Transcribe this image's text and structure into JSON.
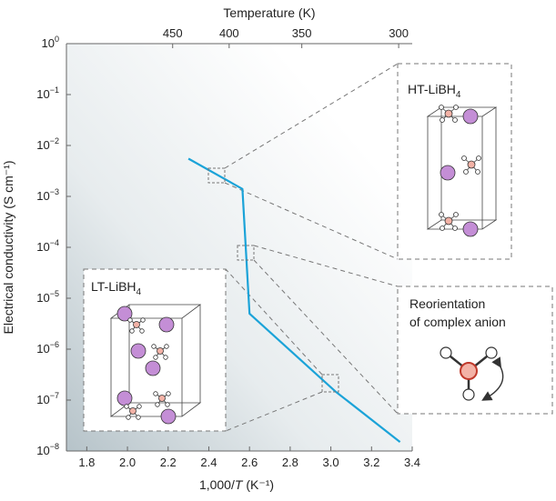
{
  "chart_data": {
    "type": "line",
    "title": "",
    "xlabel_prefix": "1,000/",
    "xlabel_var": "T",
    "xlabel_suffix": " (K⁻¹)",
    "ylabel": "Electrical conductivity (S cm⁻¹)",
    "top_axis_label": "Temperature (K)",
    "xlim": [
      1.7,
      3.4
    ],
    "ylim_log10": [
      -8,
      0
    ],
    "y_scale": "log",
    "x_ticks": [
      "1.8",
      "2.0",
      "2.2",
      "2.4",
      "2.6",
      "2.8",
      "3.0",
      "3.2",
      "3.4"
    ],
    "y_ticks": [
      {
        "base": "10",
        "exp": "0"
      },
      {
        "base": "10",
        "exp": "−1"
      },
      {
        "base": "10",
        "exp": "−2"
      },
      {
        "base": "10",
        "exp": "−3"
      },
      {
        "base": "10",
        "exp": "−4"
      },
      {
        "base": "10",
        "exp": "−5"
      },
      {
        "base": "10",
        "exp": "−6"
      },
      {
        "base": "10",
        "exp": "−7"
      },
      {
        "base": "10",
        "exp": "−8"
      }
    ],
    "top_ticks": [
      {
        "temperature": 450,
        "label": "450"
      },
      {
        "temperature": 400,
        "label": "400"
      },
      {
        "temperature": 350,
        "label": "350"
      },
      {
        "temperature": 300,
        "label": "300"
      }
    ],
    "series": [
      {
        "color": "#1ba3d8",
        "x": [
          2.3,
          2.565,
          2.6,
          3.02,
          3.34
        ],
        "y": [
          0.0055,
          0.0014,
          5e-06,
          1.5e-07,
          1.5e-08
        ]
      }
    ],
    "insets": {
      "ht": {
        "title_main": "HT-LiBH",
        "title_sub": "4"
      },
      "lt": {
        "title_main": "LT-LiBH",
        "title_sub": "4"
      },
      "reorientation": {
        "line1": "Reorientation",
        "line2": "of complex anion"
      }
    },
    "colors": {
      "line": "#1ba3d8",
      "frame": "#777777",
      "dashed": "#777777",
      "li_atom": "#c48ed6",
      "b_atom": "#f3b2a6",
      "h_atom": "#ffffff",
      "bond": "#333333",
      "gradient_dark": "#b9c6cc"
    }
  }
}
